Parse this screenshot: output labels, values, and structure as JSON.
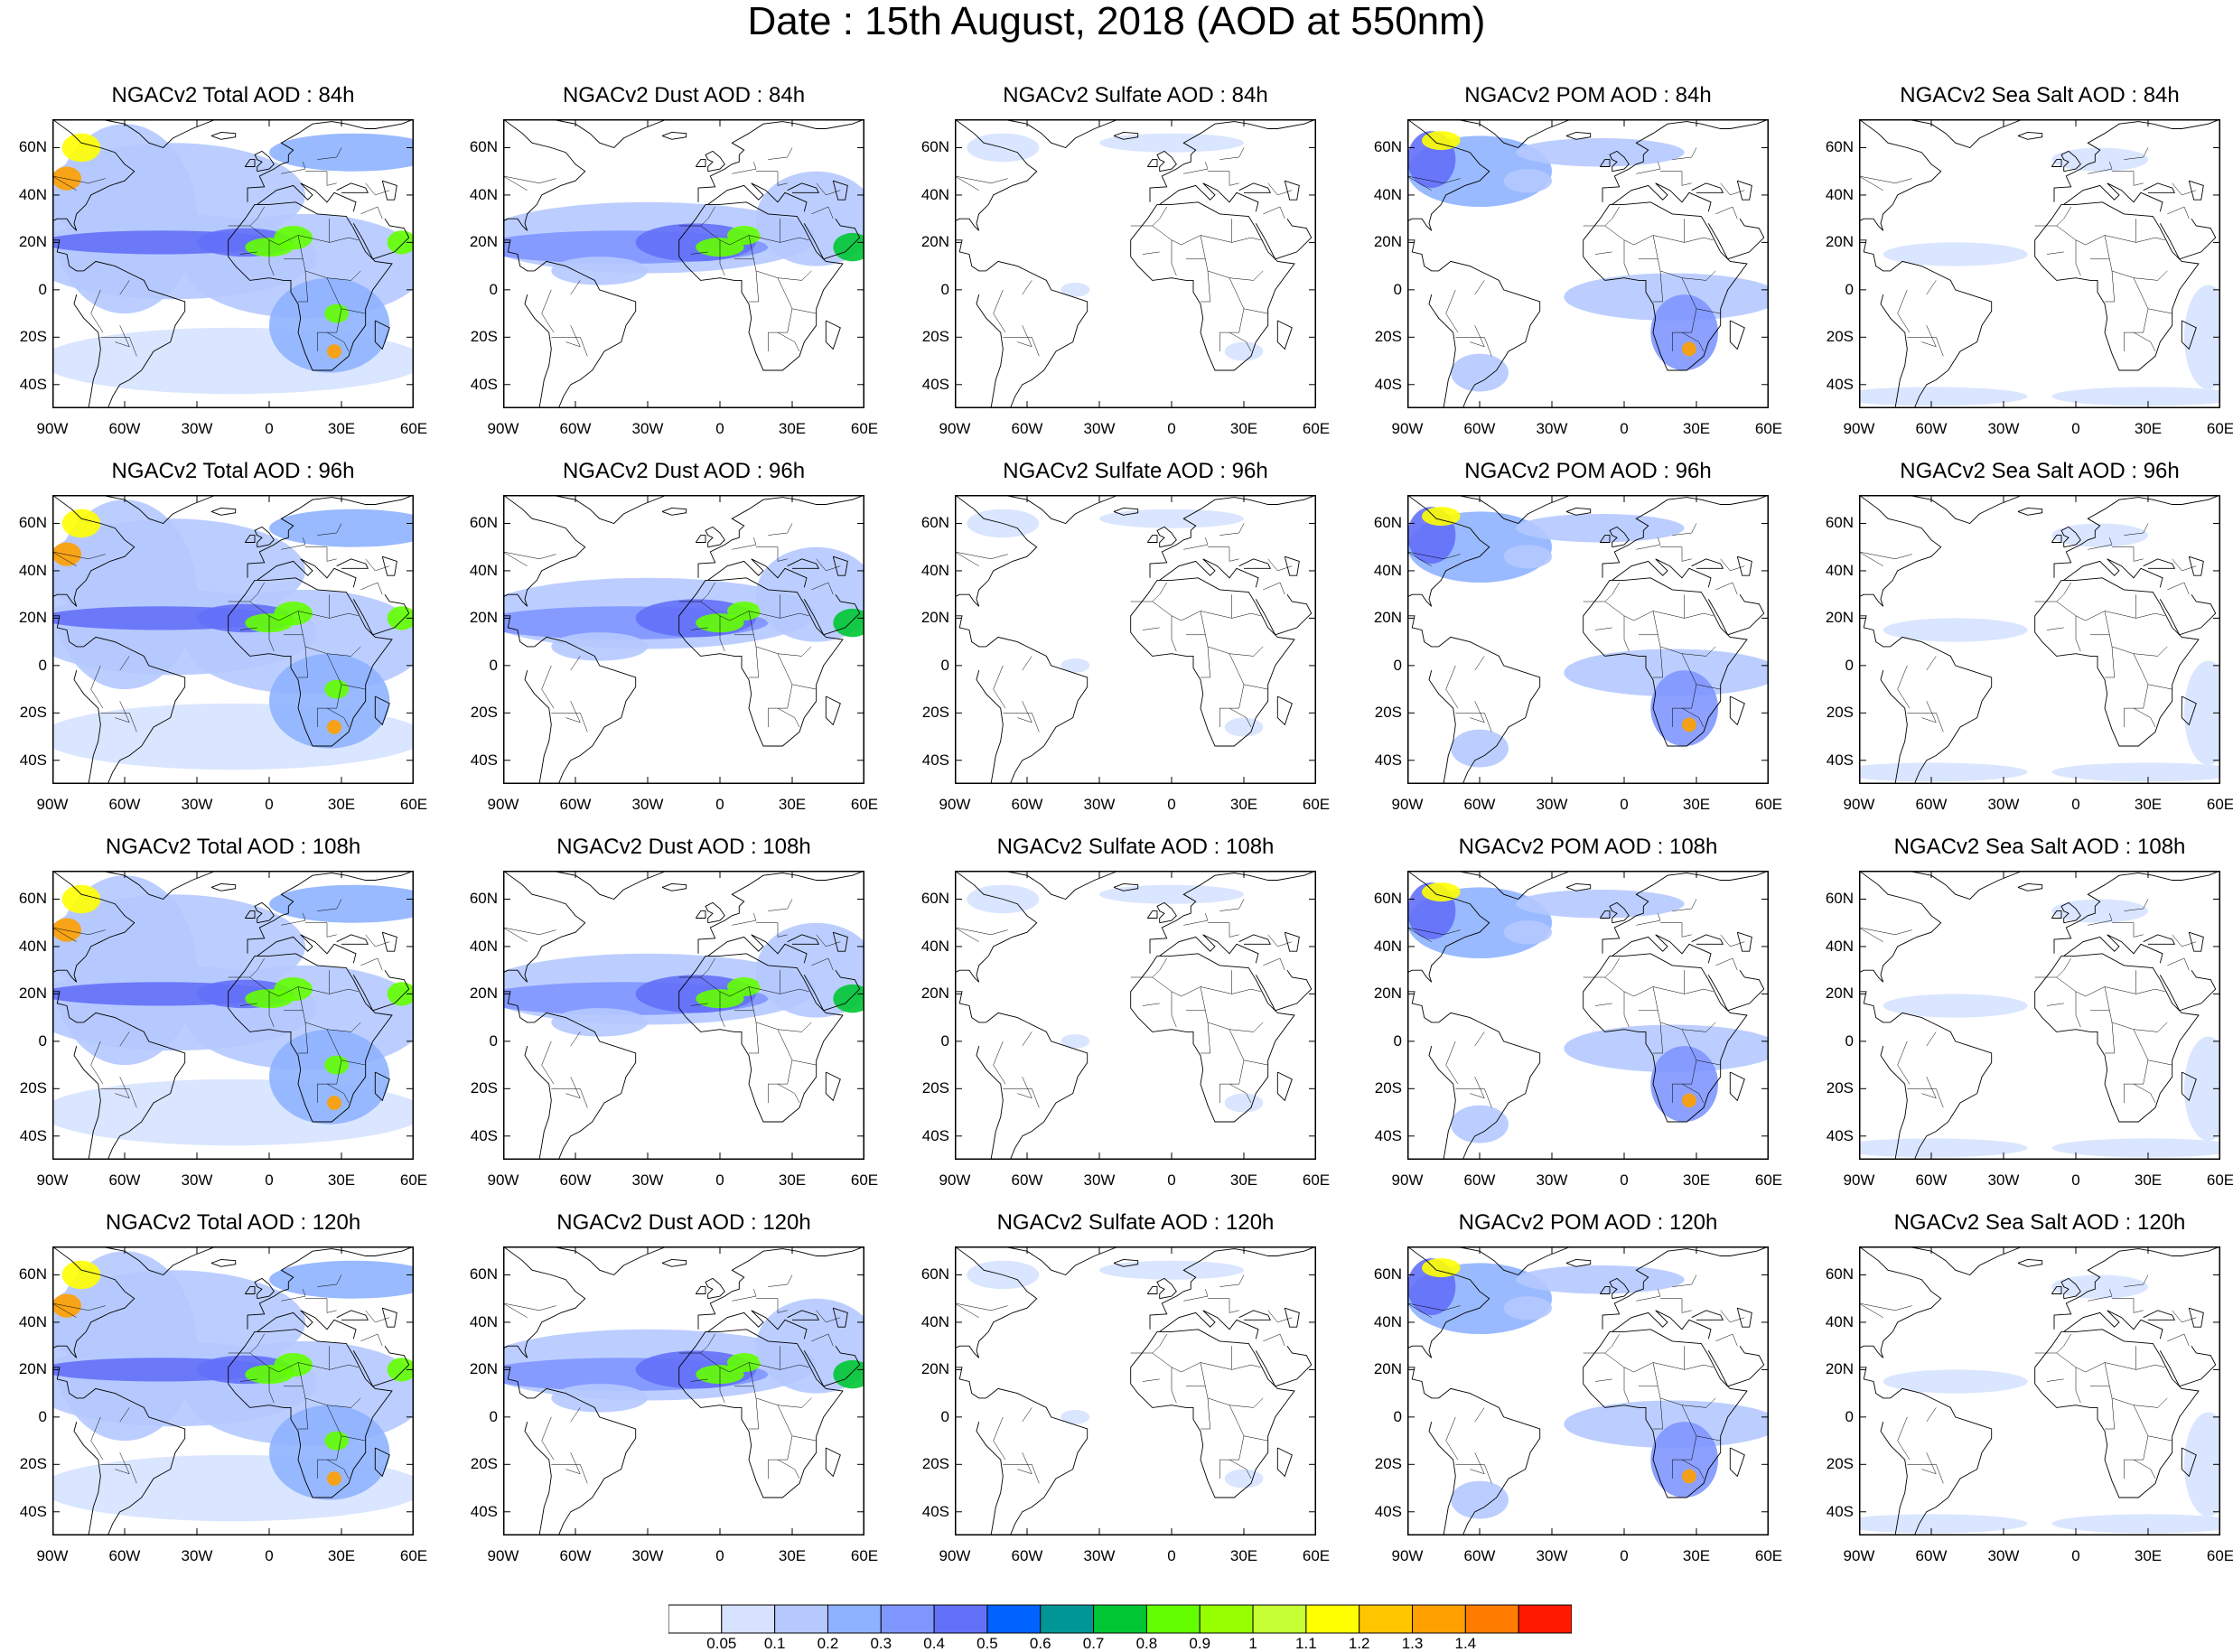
{
  "title": "Date : 15th August, 2018 (AOD at 550nm)",
  "panel_columns": [
    {
      "name": "Total AOD",
      "titles": [
        "NGACv2 Total AOD : 84h",
        "NGACv2 Total AOD : 96h",
        "NGACv2 Total AOD : 108h",
        "NGACv2 Total AOD : 120h"
      ]
    },
    {
      "name": "Dust AOD",
      "titles": [
        "NGACv2 Dust AOD : 84h",
        "NGACv2 Dust AOD : 96h",
        "NGACv2 Dust AOD : 108h",
        "NGACv2 Dust AOD : 120h"
      ]
    },
    {
      "name": "Sulfate AOD",
      "titles": [
        "NGACv2 Sulfate AOD : 84h",
        "NGACv2 Sulfate AOD : 96h",
        "NGACv2 Sulfate AOD : 108h",
        "NGACv2 Sulfate AOD : 120h"
      ]
    },
    {
      "name": "POM AOD",
      "titles": [
        "NGACv2 POM AOD : 84h",
        "NGACv2 POM AOD : 96h",
        "NGACv2 POM AOD : 108h",
        "NGACv2 POM AOD : 120h"
      ]
    },
    {
      "name": "Sea Salt AOD",
      "titles": [
        "NGACv2 Sea Salt AOD : 84h",
        "NGACv2 Sea Salt AOD : 96h",
        "NGACv2 Sea Salt AOD : 108h",
        "NGACv2 Sea Salt  AOD : 120h"
      ]
    }
  ],
  "lat_ticks": [
    "60N",
    "40N",
    "20N",
    "0",
    "20S",
    "40S"
  ],
  "lon_ticks": [
    "90W",
    "60W",
    "30W",
    "0",
    "30E",
    "60E"
  ],
  "colorbar": {
    "labels": [
      "0.05",
      "0.1",
      "0.2",
      "0.3",
      "0.4",
      "0.5",
      "0.6",
      "0.7",
      "0.8",
      "0.9",
      "1",
      "1.1",
      "1.2",
      "1.3",
      "1.4"
    ],
    "colors": [
      "#ffffff",
      "#d6e2ff",
      "#b5c9ff",
      "#8eb2ff",
      "#7f96ff",
      "#6370f8",
      "#0063ff",
      "#009696",
      "#00c633",
      "#63ff00",
      "#96ff00",
      "#c6ff33",
      "#ffff00",
      "#ffc600",
      "#ffa000",
      "#ff7c00",
      "#ff1900"
    ]
  },
  "colors": {
    "land_outline": "#000000",
    "frame": "#000000"
  }
}
